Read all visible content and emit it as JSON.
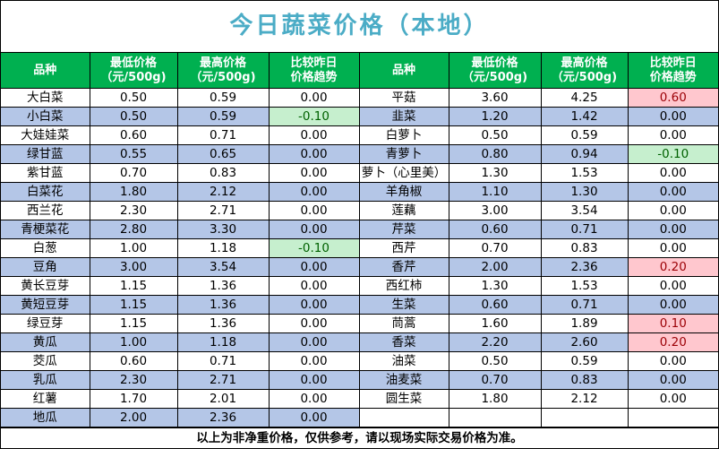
{
  "title": "今日蔬菜价格（本地）",
  "header": {
    "name": "品种",
    "min": [
      "最低价格",
      "（元/500g)"
    ],
    "max": [
      "最高价格",
      "（元/500g)"
    ],
    "trend": [
      "比较昨日",
      "价格趋势"
    ]
  },
  "left": [
    {
      "name": "大白菜",
      "min": "0.50",
      "max": "0.59",
      "change": "0.00",
      "dir": "flat"
    },
    {
      "name": "小白菜",
      "min": "0.50",
      "max": "0.59",
      "change": "-0.10",
      "dir": "down"
    },
    {
      "name": "大娃娃菜",
      "min": "0.60",
      "max": "0.71",
      "change": "0.00",
      "dir": "flat"
    },
    {
      "name": "绿甘蓝",
      "min": "0.55",
      "max": "0.65",
      "change": "0.00",
      "dir": "flat"
    },
    {
      "name": "紫甘蓝",
      "min": "0.70",
      "max": "0.83",
      "change": "0.00",
      "dir": "flat"
    },
    {
      "name": "白菜花",
      "min": "1.80",
      "max": "2.12",
      "change": "0.00",
      "dir": "flat"
    },
    {
      "name": "西兰花",
      "min": "2.30",
      "max": "2.71",
      "change": "0.00",
      "dir": "flat"
    },
    {
      "name": "青梗菜花",
      "min": "2.80",
      "max": "3.30",
      "change": "0.00",
      "dir": "flat"
    },
    {
      "name": "白葱",
      "min": "1.00",
      "max": "1.18",
      "change": "-0.10",
      "dir": "down"
    },
    {
      "name": "豆角",
      "min": "3.00",
      "max": "3.54",
      "change": "0.00",
      "dir": "flat"
    },
    {
      "name": "黄长豆芽",
      "min": "1.15",
      "max": "1.36",
      "change": "0.00",
      "dir": "flat"
    },
    {
      "name": "黄短豆芽",
      "min": "1.15",
      "max": "1.36",
      "change": "0.00",
      "dir": "flat"
    },
    {
      "name": "绿豆芽",
      "min": "1.15",
      "max": "1.36",
      "change": "0.00",
      "dir": "flat"
    },
    {
      "name": "黄瓜",
      "min": "1.00",
      "max": "1.18",
      "change": "0.00",
      "dir": "flat"
    },
    {
      "name": "茭瓜",
      "min": "0.60",
      "max": "0.71",
      "change": "0.00",
      "dir": "flat"
    },
    {
      "name": "乳瓜",
      "min": "2.30",
      "max": "2.71",
      "change": "0.00",
      "dir": "flat"
    },
    {
      "name": "红薯",
      "min": "1.70",
      "max": "2.01",
      "change": "0.00",
      "dir": "flat"
    },
    {
      "name": "地瓜",
      "min": "2.00",
      "max": "2.36",
      "change": "0.00",
      "dir": "flat"
    }
  ],
  "right": [
    {
      "name": "平菇",
      "min": "3.60",
      "max": "4.25",
      "change": "0.60",
      "dir": "up"
    },
    {
      "name": "韭菜",
      "min": "1.20",
      "max": "1.42",
      "change": "0.00",
      "dir": "flat"
    },
    {
      "name": "白萝卜",
      "min": "0.50",
      "max": "0.59",
      "change": "0.00",
      "dir": "flat"
    },
    {
      "name": "青萝卜",
      "min": "0.80",
      "max": "0.94",
      "change": "-0.10",
      "dir": "down"
    },
    {
      "name": "萝卜（心里美）",
      "min": "1.30",
      "max": "1.53",
      "change": "0.00",
      "dir": "flat"
    },
    {
      "name": "羊角椒",
      "min": "1.10",
      "max": "1.30",
      "change": "0.00",
      "dir": "flat"
    },
    {
      "name": "莲藕",
      "min": "3.00",
      "max": "3.54",
      "change": "0.00",
      "dir": "flat"
    },
    {
      "name": "芹菜",
      "min": "0.60",
      "max": "0.71",
      "change": "0.00",
      "dir": "flat"
    },
    {
      "name": "西芹",
      "min": "0.70",
      "max": "0.83",
      "change": "0.00",
      "dir": "flat"
    },
    {
      "name": "香芹",
      "min": "2.00",
      "max": "2.36",
      "change": "0.20",
      "dir": "up"
    },
    {
      "name": "西红柿",
      "min": "1.30",
      "max": "1.53",
      "change": "0.00",
      "dir": "flat"
    },
    {
      "name": "生菜",
      "min": "0.60",
      "max": "0.71",
      "change": "0.00",
      "dir": "flat"
    },
    {
      "name": "茼蒿",
      "min": "1.60",
      "max": "1.89",
      "change": "0.10",
      "dir": "up"
    },
    {
      "name": "香菜",
      "min": "2.20",
      "max": "2.60",
      "change": "0.20",
      "dir": "up"
    },
    {
      "name": "油菜",
      "min": "0.50",
      "max": "0.59",
      "change": "0.00",
      "dir": "flat"
    },
    {
      "name": "油麦菜",
      "min": "0.70",
      "max": "0.83",
      "change": "0.00",
      "dir": "flat"
    },
    {
      "name": "圆生菜",
      "min": "1.80",
      "max": "2.12",
      "change": "0.00",
      "dir": "flat"
    }
  ],
  "footer": "以上为非净重价格，仅供参考，请以现场实际交易价格为准。",
  "colors": {
    "title": "#4bacc6",
    "header_bg": "#00b050",
    "alt_row": "#b4c6e7",
    "price_up_bg": "#ffc7ce",
    "price_up_text": "#9c0006",
    "price_down_bg": "#c6efce",
    "price_down_text": "#006100"
  }
}
